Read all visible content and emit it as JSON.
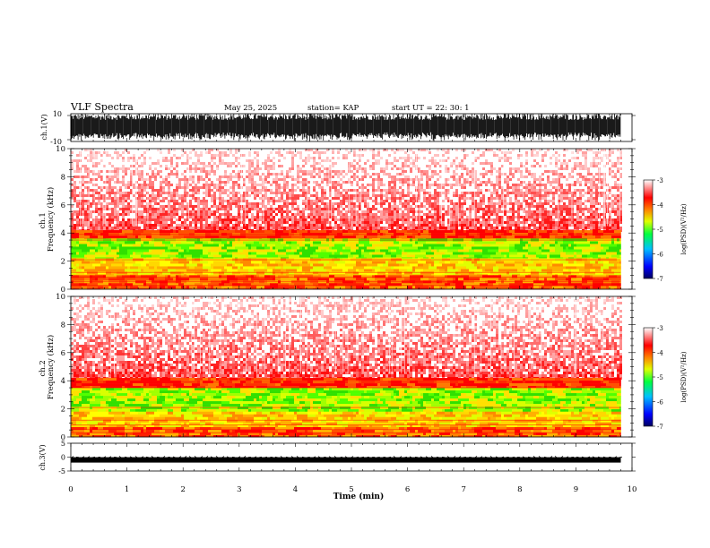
{
  "chart_data": {
    "type": "heatmap",
    "title": "VLF Spectra",
    "date": "May 25, 2025",
    "station": "station= KAP",
    "start": "start  UT =   22: 30: 1",
    "xlabel": "Time  (min)",
    "xlim": [
      0,
      10
    ],
    "xticks": [
      "0",
      "1",
      "2",
      "3",
      "4",
      "5",
      "6",
      "7",
      "8",
      "9",
      "10"
    ],
    "data_end_min": 9.8,
    "waveform_top": {
      "ylabel": "ch.1(V)",
      "ylim": [
        -10,
        10
      ],
      "yticks": [
        "10",
        "-10"
      ],
      "amplitude": 10
    },
    "spectrogram_1": {
      "ylabel": "ch.1\nFrequency (kHz)",
      "ylim": [
        0,
        10
      ],
      "yticks": [
        "10",
        "8",
        "6",
        "4",
        "2",
        "0"
      ],
      "bands": [
        {
          "from_khz": 4.2,
          "to_khz": 10,
          "level": "red-speckle"
        },
        {
          "from_khz": 3.6,
          "to_khz": 4.2,
          "level": "red-orange"
        },
        {
          "from_khz": 2.2,
          "to_khz": 3.6,
          "level": "green-yellow"
        },
        {
          "from_khz": 1.0,
          "to_khz": 2.2,
          "level": "yellow"
        },
        {
          "from_khz": 0.0,
          "to_khz": 1.0,
          "level": "orange"
        }
      ]
    },
    "spectrogram_2": {
      "ylabel": "ch.2\nFrequency (kHz)",
      "ylim": [
        0,
        10
      ],
      "yticks": [
        "10",
        "8",
        "6",
        "4",
        "2",
        "0"
      ],
      "bands": [
        {
          "from_khz": 4.2,
          "to_khz": 10,
          "level": "red-speckle"
        },
        {
          "from_khz": 3.5,
          "to_khz": 4.2,
          "level": "red-orange"
        },
        {
          "from_khz": 1.8,
          "to_khz": 3.5,
          "level": "green-yellow"
        },
        {
          "from_khz": 0.7,
          "to_khz": 1.8,
          "level": "yellow"
        },
        {
          "from_khz": 0.0,
          "to_khz": 0.7,
          "level": "orange"
        }
      ]
    },
    "waveform_bottom": {
      "ylabel": "ch.3(V)",
      "ylim": [
        -5,
        5
      ],
      "yticks": [
        "5",
        "0",
        "-5"
      ],
      "level": -1
    },
    "colorbar": {
      "label": "log(PSD)(V²/Hz)",
      "range": [
        -7,
        -3
      ],
      "ticks": [
        "-3",
        "-4",
        "-5",
        "-6",
        "-7"
      ]
    },
    "colors": {
      "high": "#ff0000",
      "mid": "#00e000",
      "low": "#0000ff",
      "yellow": "#ffd800",
      "trace": "#000000"
    }
  }
}
